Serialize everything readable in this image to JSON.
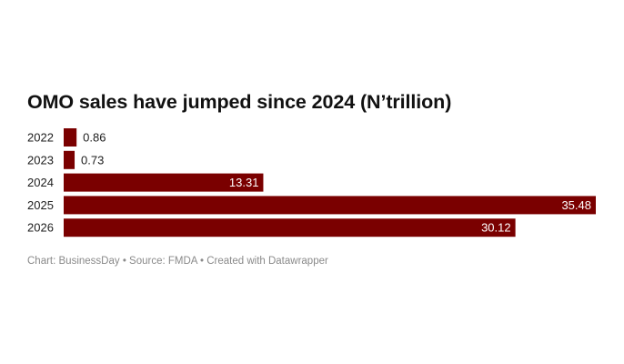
{
  "chart_data": {
    "type": "bar",
    "orientation": "horizontal",
    "title": "OMO sales have jumped since 2024 (N’trillion)",
    "categories": [
      "2022",
      "2023",
      "2024",
      "2025",
      "2026"
    ],
    "values": [
      0.86,
      0.73,
      13.31,
      35.48,
      30.12
    ],
    "value_labels": [
      "0.86",
      "0.73",
      "13.31",
      "35.48",
      "30.12"
    ],
    "bar_color": "#7a0000",
    "xlim": [
      0,
      35.48
    ],
    "grid": false,
    "legend": "none"
  },
  "footer": {
    "text": "Chart: BusinessDay • Source: FMDA • Created with Datawrapper"
  }
}
